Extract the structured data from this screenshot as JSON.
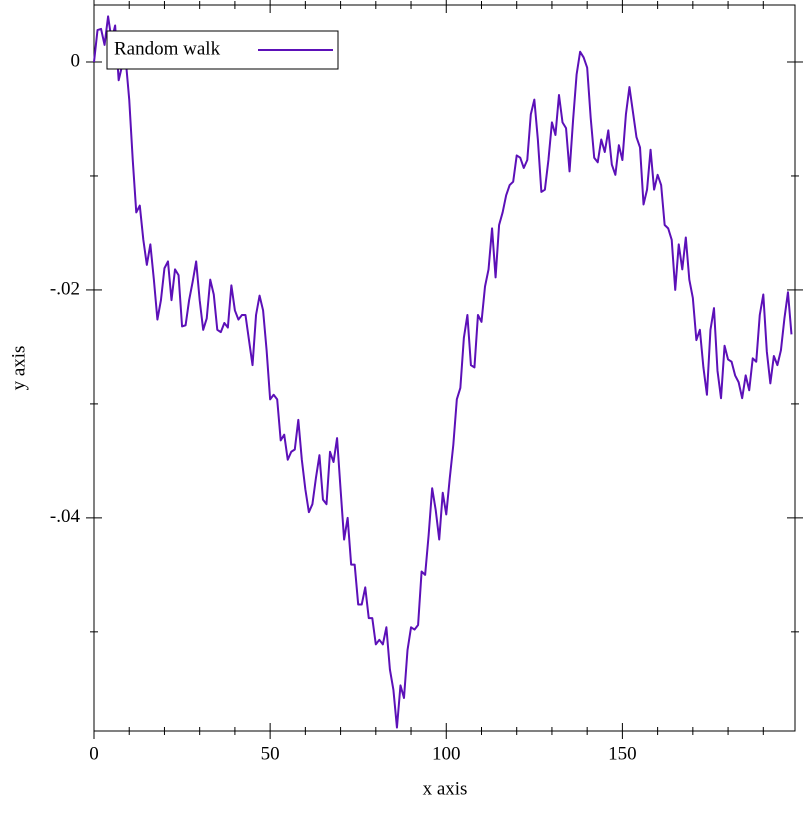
{
  "chart_data": {
    "type": "line",
    "x_label": "x axis",
    "y_label": "y axis",
    "xlim": [
      0,
      199
    ],
    "ylim": [
      -0.0587,
      0.005
    ],
    "xticks": [
      0,
      50,
      100,
      150
    ],
    "x_minor_ticks": [
      10,
      20,
      30,
      40,
      60,
      70,
      80,
      90,
      110,
      120,
      130,
      140,
      160,
      170,
      180,
      190
    ],
    "yticks": [
      0,
      {
        "value": -0.02,
        "label": "-.02"
      },
      {
        "value": -0.04,
        "label": "-.04"
      }
    ],
    "y_minor_ticks": [
      -0.01,
      -0.03,
      -0.05
    ],
    "legend": "top-left",
    "x": [
      0,
      1,
      2,
      3,
      4,
      5,
      6,
      7,
      8,
      9,
      10,
      11,
      12,
      13,
      14,
      15,
      16,
      17,
      18,
      19,
      20,
      21,
      22,
      23,
      24,
      25,
      26,
      27,
      28,
      29,
      30,
      31,
      32,
      33,
      34,
      35,
      36,
      37,
      38,
      39,
      40,
      41,
      42,
      43,
      44,
      45,
      46,
      47,
      48,
      49,
      50,
      51,
      52,
      53,
      54,
      55,
      56,
      57,
      58,
      59,
      60,
      61,
      62,
      63,
      64,
      65,
      66,
      67,
      68,
      69,
      70,
      71,
      72,
      73,
      74,
      75,
      76,
      77,
      78,
      79,
      80,
      81,
      82,
      83,
      84,
      85,
      86,
      87,
      88,
      89,
      90,
      91,
      92,
      93,
      94,
      95,
      96,
      97,
      98,
      99,
      100,
      101,
      102,
      103,
      104,
      105,
      106,
      107,
      108,
      109,
      110,
      111,
      112,
      113,
      114,
      115,
      116,
      117,
      118,
      119,
      120,
      121,
      122,
      123,
      124,
      125,
      126,
      127,
      128,
      129,
      130,
      131,
      132,
      133,
      134,
      135,
      136,
      137,
      138,
      139,
      140,
      141,
      142,
      143,
      144,
      145,
      146,
      147,
      148,
      149,
      150,
      151,
      152,
      153,
      154,
      155,
      156,
      157,
      158,
      159,
      160,
      161,
      162,
      163,
      164,
      165,
      166,
      167,
      168,
      169,
      170,
      171,
      172,
      173,
      174,
      175,
      176,
      177,
      178,
      179,
      180,
      181,
      182,
      183,
      184,
      185,
      186,
      187,
      188,
      189,
      190,
      191,
      192,
      193,
      194,
      195,
      196,
      197,
      198
    ],
    "series": [
      {
        "name": "Random walk",
        "color": "#5c10b8",
        "values": [
          0,
          0.0028,
          0.0029,
          0.0015,
          0.004,
          0.0019,
          0.0032,
          -0.0016,
          -0.0003,
          0.0002,
          -0.0033,
          -0.0086,
          -0.0132,
          -0.0126,
          -0.0156,
          -0.0178,
          -0.016,
          -0.0191,
          -0.0226,
          -0.0209,
          -0.0181,
          -0.0175,
          -0.0209,
          -0.0182,
          -0.0187,
          -0.0232,
          -0.0231,
          -0.0209,
          -0.0193,
          -0.0175,
          -0.0209,
          -0.0235,
          -0.0225,
          -0.0191,
          -0.0204,
          -0.0235,
          -0.0237,
          -0.0229,
          -0.0233,
          -0.0196,
          -0.0218,
          -0.0226,
          -0.0222,
          -0.0222,
          -0.0244,
          -0.0266,
          -0.0222,
          -0.0205,
          -0.0218,
          -0.0253,
          -0.0296,
          -0.0292,
          -0.0296,
          -0.0332,
          -0.0327,
          -0.0349,
          -0.0342,
          -0.034,
          -0.0314,
          -0.0349,
          -0.0375,
          -0.0395,
          -0.0388,
          -0.0365,
          -0.0345,
          -0.0384,
          -0.0388,
          -0.0342,
          -0.0351,
          -0.033,
          -0.0375,
          -0.0419,
          -0.04,
          -0.0441,
          -0.0441,
          -0.0476,
          -0.0476,
          -0.0461,
          -0.0488,
          -0.0488,
          -0.0511,
          -0.0507,
          -0.0511,
          -0.0496,
          -0.0533,
          -0.0551,
          -0.0584,
          -0.0547,
          -0.0558,
          -0.0516,
          -0.0496,
          -0.0498,
          -0.0494,
          -0.0447,
          -0.045,
          -0.0415,
          -0.0374,
          -0.0393,
          -0.0419,
          -0.0378,
          -0.0397,
          -0.0365,
          -0.0336,
          -0.0296,
          -0.0286,
          -0.0242,
          -0.0222,
          -0.0266,
          -0.0268,
          -0.0222,
          -0.0228,
          -0.0197,
          -0.0182,
          -0.0146,
          -0.0189,
          -0.0143,
          -0.0132,
          -0.0117,
          -0.0108,
          -0.0105,
          -0.0082,
          -0.0084,
          -0.0093,
          -0.0086,
          -0.0046,
          -0.0033,
          -0.0068,
          -0.0114,
          -0.0112,
          -0.0086,
          -0.0053,
          -0.0064,
          -0.0029,
          -0.0053,
          -0.0058,
          -0.0096,
          -0.0051,
          -0.0011,
          0.0009,
          0.0004,
          -0.0005,
          -0.0049,
          -0.0084,
          -0.0088,
          -0.0068,
          -0.0079,
          -0.006,
          -0.009,
          -0.0099,
          -0.0073,
          -0.0086,
          -0.0046,
          -0.0022,
          -0.0044,
          -0.0066,
          -0.0075,
          -0.0125,
          -0.0112,
          -0.0077,
          -0.0112,
          -0.0099,
          -0.0108,
          -0.0143,
          -0.0146,
          -0.0156,
          -0.02,
          -0.016,
          -0.0182,
          -0.0154,
          -0.0191,
          -0.0207,
          -0.0244,
          -0.0235,
          -0.0268,
          -0.0292,
          -0.0235,
          -0.0216,
          -0.0271,
          -0.0295,
          -0.0249,
          -0.0261,
          -0.0263,
          -0.0275,
          -0.0281,
          -0.0295,
          -0.0275,
          -0.0288,
          -0.026,
          -0.0263,
          -0.0222,
          -0.0204,
          -0.0254,
          -0.0282,
          -0.0258,
          -0.0266,
          -0.0253,
          -0.0225,
          -0.0202,
          -0.0239
        ]
      }
    ]
  }
}
